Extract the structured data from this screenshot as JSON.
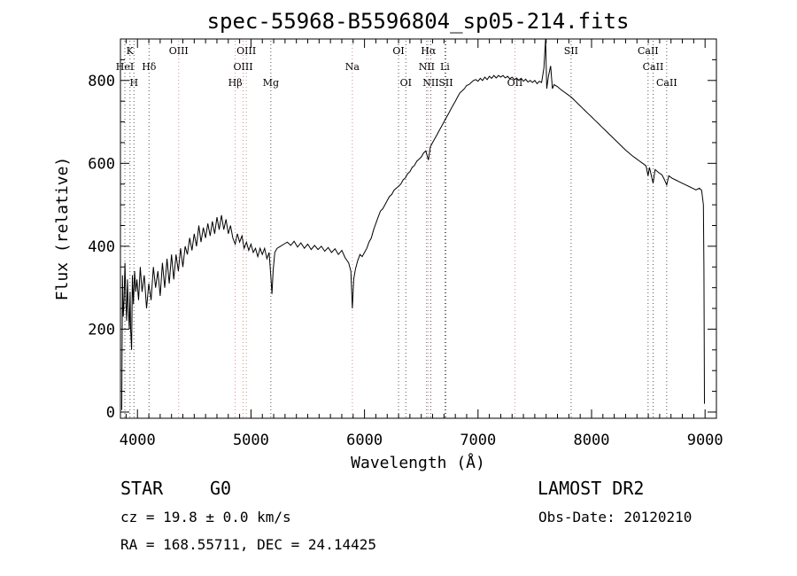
{
  "chart_data": {
    "type": "line",
    "title": "spec-55968-B5596804_sp05-214.fits",
    "xlabel": "Wavelength (Å)",
    "ylabel": "Flux (relative)",
    "xlim": [
      3850,
      9100
    ],
    "ylim": [
      -15,
      900
    ],
    "xticks": [
      4000,
      5000,
      6000,
      7000,
      8000,
      9000
    ],
    "yticks": [
      0,
      200,
      400,
      600,
      800
    ],
    "grid": false,
    "series": [
      {
        "values": [
          [
            3862,
            5
          ],
          [
            3868,
            330
          ],
          [
            3875,
            230
          ],
          [
            3882,
            270
          ],
          [
            3890,
            360
          ],
          [
            3898,
            260
          ],
          [
            3905,
            220
          ],
          [
            3912,
            320
          ],
          [
            3920,
            250
          ],
          [
            3928,
            200
          ],
          [
            3935,
            290
          ],
          [
            3940,
            200
          ],
          [
            3948,
            150
          ],
          [
            3955,
            330
          ],
          [
            3965,
            260
          ],
          [
            3975,
            340
          ],
          [
            3985,
            290
          ],
          [
            3995,
            320
          ],
          [
            4010,
            270
          ],
          [
            4025,
            350
          ],
          [
            4040,
            290
          ],
          [
            4060,
            330
          ],
          [
            4080,
            250
          ],
          [
            4100,
            310
          ],
          [
            4120,
            270
          ],
          [
            4140,
            350
          ],
          [
            4160,
            300
          ],
          [
            4180,
            340
          ],
          [
            4200,
            280
          ],
          [
            4220,
            360
          ],
          [
            4240,
            300
          ],
          [
            4260,
            370
          ],
          [
            4280,
            310
          ],
          [
            4300,
            380
          ],
          [
            4320,
            320
          ],
          [
            4340,
            380
          ],
          [
            4360,
            340
          ],
          [
            4380,
            395
          ],
          [
            4400,
            350
          ],
          [
            4420,
            400
          ],
          [
            4440,
            380
          ],
          [
            4460,
            420
          ],
          [
            4480,
            390
          ],
          [
            4500,
            430
          ],
          [
            4520,
            400
          ],
          [
            4540,
            450
          ],
          [
            4560,
            410
          ],
          [
            4580,
            445
          ],
          [
            4600,
            420
          ],
          [
            4620,
            455
          ],
          [
            4640,
            425
          ],
          [
            4660,
            460
          ],
          [
            4680,
            430
          ],
          [
            4700,
            470
          ],
          [
            4720,
            440
          ],
          [
            4740,
            475
          ],
          [
            4760,
            440
          ],
          [
            4780,
            465
          ],
          [
            4800,
            430
          ],
          [
            4820,
            450
          ],
          [
            4840,
            420
          ],
          [
            4861,
            405
          ],
          [
            4880,
            430
          ],
          [
            4900,
            410
          ],
          [
            4920,
            425
          ],
          [
            4940,
            395
          ],
          [
            4960,
            410
          ],
          [
            4980,
            390
          ],
          [
            5000,
            405
          ],
          [
            5020,
            385
          ],
          [
            5040,
            395
          ],
          [
            5060,
            375
          ],
          [
            5080,
            395
          ],
          [
            5100,
            380
          ],
          [
            5120,
            395
          ],
          [
            5140,
            370
          ],
          [
            5160,
            385
          ],
          [
            5175,
            325
          ],
          [
            5185,
            285
          ],
          [
            5195,
            340
          ],
          [
            5210,
            385
          ],
          [
            5230,
            395
          ],
          [
            5260,
            400
          ],
          [
            5290,
            405
          ],
          [
            5320,
            410
          ],
          [
            5350,
            402
          ],
          [
            5380,
            412
          ],
          [
            5410,
            398
          ],
          [
            5440,
            408
          ],
          [
            5470,
            395
          ],
          [
            5500,
            405
          ],
          [
            5530,
            392
          ],
          [
            5560,
            402
          ],
          [
            5590,
            392
          ],
          [
            5620,
            400
          ],
          [
            5650,
            388
          ],
          [
            5680,
            397
          ],
          [
            5710,
            385
          ],
          [
            5740,
            394
          ],
          [
            5770,
            380
          ],
          [
            5800,
            390
          ],
          [
            5830,
            372
          ],
          [
            5860,
            360
          ],
          [
            5880,
            340
          ],
          [
            5893,
            250
          ],
          [
            5905,
            320
          ],
          [
            5920,
            345
          ],
          [
            5940,
            365
          ],
          [
            5960,
            380
          ],
          [
            5980,
            375
          ],
          [
            6000,
            385
          ],
          [
            6020,
            395
          ],
          [
            6040,
            410
          ],
          [
            6060,
            420
          ],
          [
            6080,
            440
          ],
          [
            6100,
            455
          ],
          [
            6120,
            470
          ],
          [
            6140,
            485
          ],
          [
            6160,
            490
          ],
          [
            6180,
            500
          ],
          [
            6200,
            510
          ],
          [
            6220,
            520
          ],
          [
            6240,
            525
          ],
          [
            6260,
            535
          ],
          [
            6280,
            540
          ],
          [
            6300,
            545
          ],
          [
            6320,
            550
          ],
          [
            6340,
            560
          ],
          [
            6360,
            565
          ],
          [
            6380,
            575
          ],
          [
            6400,
            580
          ],
          [
            6420,
            590
          ],
          [
            6440,
            595
          ],
          [
            6460,
            605
          ],
          [
            6480,
            610
          ],
          [
            6500,
            615
          ],
          [
            6520,
            625
          ],
          [
            6540,
            630
          ],
          [
            6563,
            608
          ],
          [
            6580,
            640
          ],
          [
            6600,
            650
          ],
          [
            6620,
            660
          ],
          [
            6640,
            670
          ],
          [
            6660,
            680
          ],
          [
            6680,
            690
          ],
          [
            6700,
            700
          ],
          [
            6720,
            710
          ],
          [
            6740,
            720
          ],
          [
            6760,
            730
          ],
          [
            6780,
            740
          ],
          [
            6800,
            750
          ],
          [
            6820,
            760
          ],
          [
            6840,
            770
          ],
          [
            6860,
            775
          ],
          [
            6880,
            780
          ],
          [
            6900,
            788
          ],
          [
            6920,
            790
          ],
          [
            6940,
            795
          ],
          [
            6960,
            800
          ],
          [
            6980,
            802
          ],
          [
            7000,
            798
          ],
          [
            7020,
            805
          ],
          [
            7040,
            800
          ],
          [
            7060,
            808
          ],
          [
            7080,
            802
          ],
          [
            7100,
            810
          ],
          [
            7120,
            805
          ],
          [
            7140,
            812
          ],
          [
            7160,
            806
          ],
          [
            7180,
            812
          ],
          [
            7200,
            808
          ],
          [
            7220,
            812
          ],
          [
            7240,
            806
          ],
          [
            7260,
            810
          ],
          [
            7280,
            804
          ],
          [
            7300,
            808
          ],
          [
            7320,
            802
          ],
          [
            7340,
            806
          ],
          [
            7360,
            800
          ],
          [
            7380,
            805
          ],
          [
            7400,
            798
          ],
          [
            7420,
            803
          ],
          [
            7440,
            796
          ],
          [
            7460,
            800
          ],
          [
            7480,
            795
          ],
          [
            7500,
            800
          ],
          [
            7520,
            792
          ],
          [
            7540,
            798
          ],
          [
            7560,
            795
          ],
          [
            7580,
            830
          ],
          [
            7595,
            900
          ],
          [
            7605,
            780
          ],
          [
            7620,
            810
          ],
          [
            7640,
            835
          ],
          [
            7655,
            780
          ],
          [
            7670,
            790
          ],
          [
            7700,
            785
          ],
          [
            7730,
            778
          ],
          [
            7760,
            772
          ],
          [
            7790,
            766
          ],
          [
            7820,
            760
          ],
          [
            7850,
            752
          ],
          [
            7880,
            744
          ],
          [
            7910,
            736
          ],
          [
            7940,
            728
          ],
          [
            7970,
            720
          ],
          [
            8000,
            712
          ],
          [
            8030,
            704
          ],
          [
            8060,
            696
          ],
          [
            8090,
            688
          ],
          [
            8120,
            680
          ],
          [
            8150,
            672
          ],
          [
            8180,
            664
          ],
          [
            8210,
            656
          ],
          [
            8240,
            648
          ],
          [
            8270,
            640
          ],
          [
            8300,
            632
          ],
          [
            8330,
            625
          ],
          [
            8360,
            618
          ],
          [
            8390,
            612
          ],
          [
            8420,
            606
          ],
          [
            8450,
            600
          ],
          [
            8480,
            594
          ],
          [
            8498,
            570
          ],
          [
            8510,
            590
          ],
          [
            8542,
            552
          ],
          [
            8560,
            585
          ],
          [
            8590,
            578
          ],
          [
            8620,
            572
          ],
          [
            8640,
            562
          ],
          [
            8662,
            548
          ],
          [
            8680,
            570
          ],
          [
            8710,
            564
          ],
          [
            8740,
            560
          ],
          [
            8770,
            556
          ],
          [
            8800,
            552
          ],
          [
            8830,
            548
          ],
          [
            8860,
            544
          ],
          [
            8890,
            540
          ],
          [
            8920,
            536
          ],
          [
            8950,
            540
          ],
          [
            8970,
            535
          ],
          [
            8985,
            500
          ],
          [
            8990,
            350
          ],
          [
            8995,
            20
          ]
        ]
      }
    ],
    "spectral_lines": [
      {
        "label": "K",
        "x": 3934,
        "row": 1
      },
      {
        "label": "HeI",
        "x": 3889,
        "row": 2
      },
      {
        "label": "H",
        "x": 3969,
        "row": 3
      },
      {
        "label": "Hδ",
        "x": 4102,
        "row": 2
      },
      {
        "label": "OIII",
        "x": 4363,
        "row": 1
      },
      {
        "label": "OIII",
        "x": 4959,
        "row": 1
      },
      {
        "label": "OIII",
        "x": 4931,
        "row": 2
      },
      {
        "label": "Hβ",
        "x": 4861,
        "row": 3
      },
      {
        "label": "Mg",
        "x": 5175,
        "row": 3
      },
      {
        "label": "Na",
        "x": 5893,
        "row": 2
      },
      {
        "label": "OI",
        "x": 6300,
        "row": 1
      },
      {
        "label": "OI",
        "x": 6364,
        "row": 3
      },
      {
        "label": "Hα",
        "x": 6563,
        "row": 1
      },
      {
        "label": "NII",
        "x": 6548,
        "row": 2
      },
      {
        "label": "Li",
        "x": 6708,
        "row": 2
      },
      {
        "label": "NII",
        "x": 6584,
        "row": 3
      },
      {
        "label": "SII",
        "x": 6717,
        "row": 3
      },
      {
        "label": "OII",
        "x": 7325,
        "row": 3
      },
      {
        "label": "SII",
        "x": 7820,
        "row": 1
      },
      {
        "label": "CaII",
        "x": 8498,
        "row": 1
      },
      {
        "label": "CaII",
        "x": 8542,
        "row": 2
      },
      {
        "label": "CaII",
        "x": 8662,
        "row": 3
      }
    ],
    "annotation_line_color": "#d98a8a",
    "neutral_line_color": "#555555"
  },
  "info": {
    "object_class": "STAR",
    "subclass": "G0",
    "survey": "LAMOST DR2",
    "redshift": "cz = 19.8 ± 0.0 km/s",
    "obs_date": "Obs-Date: 20120210",
    "coords": "RA = 168.55711, DEC =  24.14425"
  }
}
